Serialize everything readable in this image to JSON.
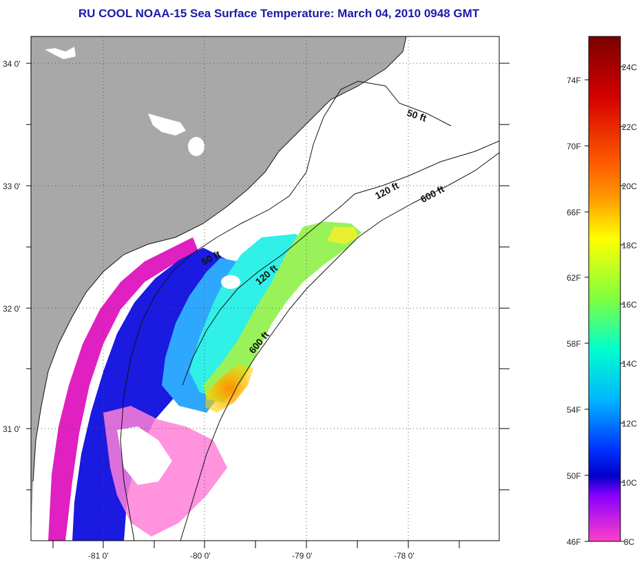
{
  "title": "RU COOL  NOAA-15  Sea Surface Temperature:  March 04, 2010 0948 GMT",
  "map": {
    "lat_ticks": [
      "34 0'",
      "33 0'",
      "32 0'",
      "31 0'"
    ],
    "lon_ticks": [
      "-81 0'",
      "-80 0'",
      "-79 0'",
      "-78 0'"
    ],
    "isobath_labels": [
      "50 ft",
      "120 ft",
      "600 ft",
      "50 ft",
      "120 ft",
      "600 ft"
    ],
    "colors": {
      "land": "#a8a8a8",
      "ocean_nodata": "#ffffff",
      "cloud": "#ffffff"
    }
  },
  "colorbar": {
    "fahrenheit": [
      "74F",
      "70F",
      "66F",
      "62F",
      "58F",
      "54F",
      "50F",
      "46F"
    ],
    "celsius": [
      "24C",
      "22C",
      "20C",
      "18C",
      "16C",
      "14C",
      "12C",
      "10C",
      "8C"
    ],
    "gradient_top_to_bottom": [
      "#7a0000",
      "#d40000",
      "#ff3b00",
      "#ff9a00",
      "#ffff00",
      "#7fff3f",
      "#00ffbf",
      "#00b5ff",
      "#0030ff",
      "#0000d0",
      "#a000ff",
      "#ff00c8"
    ]
  }
}
